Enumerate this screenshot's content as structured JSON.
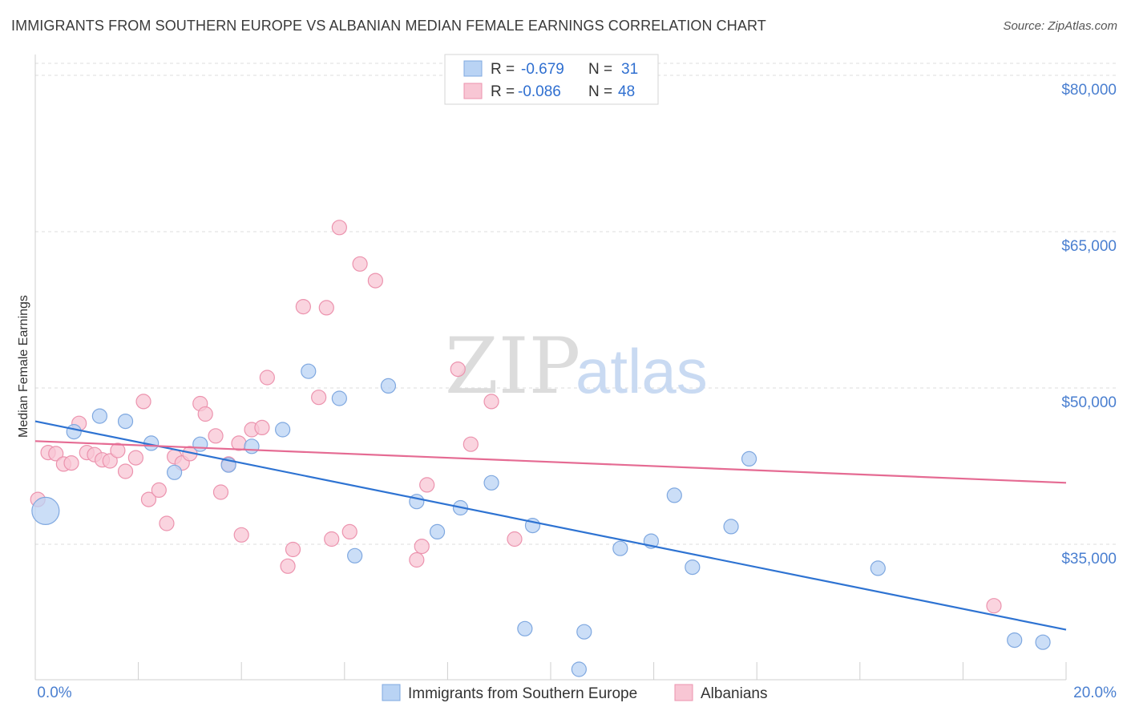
{
  "title": "IMMIGRANTS FROM SOUTHERN EUROPE VS ALBANIAN MEDIAN FEMALE EARNINGS CORRELATION CHART",
  "source": "Source: ZipAtlas.com",
  "watermark": {
    "zip": "ZIP",
    "atlas": "atlas"
  },
  "colors": {
    "blue_fill": "#b9d3f4",
    "blue_stroke": "#7fa8e0",
    "blue_line": "#2e73d2",
    "pink_fill": "#f8c6d4",
    "pink_stroke": "#ec93ae",
    "pink_line": "#e56b93",
    "grid": "#dddddd",
    "tick_text": "#4a7fd0"
  },
  "stats": {
    "blue": {
      "r_label": "R =",
      "r": "-0.679",
      "n_label": "N =",
      "n": "31"
    },
    "pink": {
      "r_label": "R =",
      "r": "-0.086",
      "n_label": "N =",
      "n": "48"
    }
  },
  "chart_data": {
    "type": "scatter",
    "title": "IMMIGRANTS FROM SOUTHERN EUROPE VS ALBANIAN MEDIAN FEMALE EARNINGS CORRELATION CHART",
    "xlabel": "",
    "ylabel": "Median Female Earnings",
    "xlim": [
      0,
      20
    ],
    "ylim": [
      22000,
      82000
    ],
    "x_tick_labels": [
      "0.0%",
      "20.0%"
    ],
    "y_ticks": [
      35000,
      50000,
      65000,
      80000
    ],
    "y_tick_labels": [
      "$35,000",
      "$50,000",
      "$65,000",
      "$80,000"
    ],
    "legend_placement": "bottom-center",
    "series": [
      {
        "name": "Immigrants from Southern Europe",
        "color": "#b9d3f4",
        "trend": {
          "x": [
            0,
            20
          ],
          "y": [
            46800,
            26800
          ]
        },
        "points": [
          {
            "x": 0.2,
            "y": 38200,
            "big": true
          },
          {
            "x": 0.75,
            "y": 45800
          },
          {
            "x": 1.25,
            "y": 47300
          },
          {
            "x": 1.75,
            "y": 46800
          },
          {
            "x": 2.25,
            "y": 44700
          },
          {
            "x": 2.7,
            "y": 41900
          },
          {
            "x": 3.2,
            "y": 44600
          },
          {
            "x": 3.75,
            "y": 42600
          },
          {
            "x": 4.2,
            "y": 44400
          },
          {
            "x": 4.8,
            "y": 46000
          },
          {
            "x": 5.3,
            "y": 51600
          },
          {
            "x": 5.9,
            "y": 49000
          },
          {
            "x": 6.2,
            "y": 33900
          },
          {
            "x": 6.85,
            "y": 50200
          },
          {
            "x": 7.4,
            "y": 39100
          },
          {
            "x": 7.8,
            "y": 36200
          },
          {
            "x": 8.25,
            "y": 38500
          },
          {
            "x": 8.85,
            "y": 40900
          },
          {
            "x": 9.5,
            "y": 26900
          },
          {
            "x": 9.65,
            "y": 36800
          },
          {
            "x": 10.55,
            "y": 23000
          },
          {
            "x": 10.65,
            "y": 26600
          },
          {
            "x": 11.35,
            "y": 34600
          },
          {
            "x": 11.95,
            "y": 35300
          },
          {
            "x": 12.4,
            "y": 39700
          },
          {
            "x": 12.75,
            "y": 32800
          },
          {
            "x": 13.5,
            "y": 36700
          },
          {
            "x": 13.85,
            "y": 43200
          },
          {
            "x": 16.35,
            "y": 32700
          },
          {
            "x": 19.0,
            "y": 25800
          },
          {
            "x": 19.55,
            "y": 25600
          }
        ]
      },
      {
        "name": "Albanians",
        "color": "#f8c6d4",
        "trend": {
          "x": [
            0,
            20
          ],
          "y": [
            44900,
            40900
          ]
        },
        "points": [
          {
            "x": 0.05,
            "y": 39300
          },
          {
            "x": 0.25,
            "y": 43800
          },
          {
            "x": 0.4,
            "y": 43700
          },
          {
            "x": 0.55,
            "y": 42700
          },
          {
            "x": 0.7,
            "y": 42800
          },
          {
            "x": 0.85,
            "y": 46600
          },
          {
            "x": 1.0,
            "y": 43800
          },
          {
            "x": 1.15,
            "y": 43600
          },
          {
            "x": 1.3,
            "y": 43100
          },
          {
            "x": 1.45,
            "y": 43000
          },
          {
            "x": 1.6,
            "y": 44000
          },
          {
            "x": 1.75,
            "y": 42000
          },
          {
            "x": 1.95,
            "y": 43300
          },
          {
            "x": 2.1,
            "y": 48700
          },
          {
            "x": 2.2,
            "y": 39300
          },
          {
            "x": 2.4,
            "y": 40200
          },
          {
            "x": 2.55,
            "y": 37000
          },
          {
            "x": 2.7,
            "y": 43400
          },
          {
            "x": 2.85,
            "y": 42800
          },
          {
            "x": 3.0,
            "y": 43700
          },
          {
            "x": 3.2,
            "y": 48500
          },
          {
            "x": 3.3,
            "y": 47500
          },
          {
            "x": 3.5,
            "y": 45400
          },
          {
            "x": 3.6,
            "y": 40000
          },
          {
            "x": 3.75,
            "y": 42700
          },
          {
            "x": 3.95,
            "y": 44700
          },
          {
            "x": 4.0,
            "y": 35900
          },
          {
            "x": 4.2,
            "y": 46000
          },
          {
            "x": 4.4,
            "y": 46200
          },
          {
            "x": 4.5,
            "y": 51000
          },
          {
            "x": 4.9,
            "y": 32900
          },
          {
            "x": 5.0,
            "y": 34500
          },
          {
            "x": 5.2,
            "y": 57800
          },
          {
            "x": 5.5,
            "y": 49100
          },
          {
            "x": 5.65,
            "y": 57700
          },
          {
            "x": 5.75,
            "y": 35500
          },
          {
            "x": 5.9,
            "y": 65400
          },
          {
            "x": 6.1,
            "y": 36200
          },
          {
            "x": 6.3,
            "y": 61900
          },
          {
            "x": 6.6,
            "y": 60300
          },
          {
            "x": 7.4,
            "y": 33500
          },
          {
            "x": 7.5,
            "y": 34800
          },
          {
            "x": 7.6,
            "y": 40700
          },
          {
            "x": 8.2,
            "y": 51800
          },
          {
            "x": 8.45,
            "y": 44600
          },
          {
            "x": 8.85,
            "y": 48700
          },
          {
            "x": 9.3,
            "y": 35500
          },
          {
            "x": 18.6,
            "y": 29100
          }
        ]
      }
    ]
  },
  "legend": {
    "items": [
      {
        "label": "Immigrants from Southern Europe",
        "color": "#b9d3f4",
        "stroke": "#7fa8e0"
      },
      {
        "label": "Albanians",
        "color": "#f8c6d4",
        "stroke": "#ec93ae"
      }
    ]
  }
}
